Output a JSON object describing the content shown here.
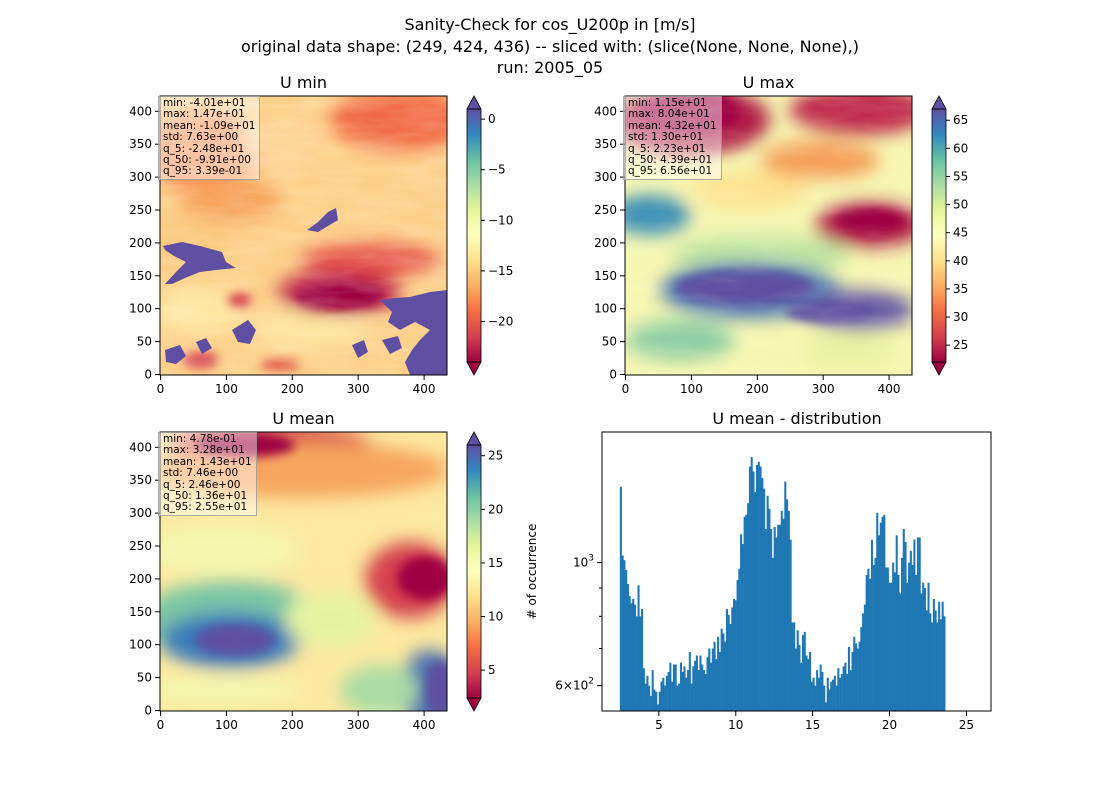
{
  "figure": {
    "title_lines": [
      "Sanity-Check for cos_U200p in [m/s]",
      "original data shape: (249, 424, 436) -- sliced with: (slice(None, None, None),)",
      "run: 2005_05"
    ]
  },
  "chart_data": [
    {
      "type": "heatmap",
      "title": "U min",
      "colormap": "Spectral",
      "x_ticks": [
        "0",
        "100",
        "200",
        "300",
        "400"
      ],
      "y_ticks": [
        "0",
        "50",
        "100",
        "150",
        "200",
        "250",
        "300",
        "350",
        "400"
      ],
      "xlim": [
        0,
        436
      ],
      "ylim": [
        0,
        424
      ],
      "colorbar": {
        "range": [
          -24,
          1
        ],
        "ticks": [
          "0",
          "−5",
          "−10",
          "−15",
          "−20"
        ],
        "tick_values": [
          0,
          -5,
          -10,
          -15,
          -20
        ],
        "extend": "both"
      },
      "stats": [
        "min: -4.01e+01",
        "max: 1.47e+01",
        "mean: -1.09e+01",
        "std: 7.63e+00",
        "q_5: -2.48e+01",
        "q_50: -9.91e+00",
        "q_95: 3.39e-01"
      ]
    },
    {
      "type": "heatmap",
      "title": "U max",
      "colormap": "Spectral",
      "x_ticks": [
        "0",
        "100",
        "200",
        "300",
        "400"
      ],
      "y_ticks": [
        "0",
        "50",
        "100",
        "150",
        "200",
        "250",
        "300",
        "350",
        "400"
      ],
      "xlim": [
        0,
        436
      ],
      "ylim": [
        0,
        424
      ],
      "colorbar": {
        "range": [
          22,
          67
        ],
        "ticks": [
          "25",
          "30",
          "35",
          "40",
          "45",
          "50",
          "55",
          "60",
          "65"
        ],
        "tick_values": [
          25,
          30,
          35,
          40,
          45,
          50,
          55,
          60,
          65
        ],
        "extend": "both"
      },
      "stats": [
        "min: 1.15e+01",
        "max: 8.04e+01",
        "mean: 4.32e+01",
        "std: 1.30e+01",
        "q_5: 2.23e+01",
        "q_50: 4.39e+01",
        "q_95: 6.56e+01"
      ]
    },
    {
      "type": "heatmap",
      "title": "U mean",
      "colormap": "Spectral",
      "x_ticks": [
        "0",
        "100",
        "200",
        "300",
        "400"
      ],
      "y_ticks": [
        "0",
        "50",
        "100",
        "150",
        "200",
        "250",
        "300",
        "350",
        "400"
      ],
      "xlim": [
        0,
        436
      ],
      "ylim": [
        0,
        424
      ],
      "colorbar": {
        "range": [
          2.4,
          26.0
        ],
        "ticks": [
          "5",
          "10",
          "15",
          "20",
          "25"
        ],
        "tick_values": [
          5,
          10,
          15,
          20,
          25
        ],
        "extend": "both"
      },
      "stats": [
        "min: 4.78e-01",
        "max: 3.28e+01",
        "mean: 1.43e+01",
        "std: 7.46e+00",
        "q_5: 2.46e+00",
        "q_50: 1.36e+01",
        "q_95: 2.55e+01"
      ]
    },
    {
      "type": "bar",
      "title": "U mean - distribution",
      "ylabel": "# of occurrence",
      "yscale": "log",
      "xlim": [
        1.3,
        26.6
      ],
      "ylim": [
        540,
        1720
      ],
      "x_ticks": [
        "5",
        "10",
        "15",
        "20",
        "25"
      ],
      "x_tick_values": [
        5,
        10,
        15,
        20,
        25
      ],
      "y_major_ticks": [
        {
          "value": 600,
          "base": "6",
          "exp": "10",
          "power": "2"
        },
        {
          "value": 1000,
          "base": "",
          "exp": "10",
          "power": "3"
        }
      ],
      "y_minor_ticks": [
        700,
        800,
        900
      ],
      "bar_color": "#1f77b4",
      "bin_start": 2.46,
      "bin_width": 0.115,
      "values": [
        1370,
        1030,
        1010,
        970,
        915,
        870,
        845,
        860,
        840,
        800,
        910,
        800,
        825,
        645,
        605,
        625,
        600,
        575,
        640,
        590,
        585,
        555,
        585,
        610,
        620,
        600,
        625,
        635,
        660,
        610,
        655,
        655,
        600,
        605,
        660,
        635,
        650,
        620,
        640,
        690,
        605,
        650,
        665,
        680,
        640,
        680,
        655,
        640,
        630,
        675,
        700,
        660,
        700,
        720,
        670,
        735,
        690,
        760,
        745,
        720,
        825,
        805,
        775,
        830,
        860,
        855,
        930,
        975,
        1125,
        1080,
        1210,
        1220,
        1280,
        1490,
        1550,
        1460,
        1340,
        1500,
        1520,
        1490,
        1420,
        1360,
        1150,
        1320,
        1250,
        1150,
        1020,
        1160,
        1110,
        1170,
        1170,
        1240,
        1200,
        1400,
        1300,
        1240,
        1100,
        780,
        780,
        700,
        755,
        710,
        660,
        740,
        750,
        680,
        670,
        690,
        610,
        620,
        600,
        640,
        620,
        655,
        635,
        600,
        560,
        620,
        590,
        610,
        615,
        625,
        600,
        645,
        620,
        630,
        650,
        660,
        630,
        705,
        640,
        690,
        735,
        715,
        700,
        720,
        765,
        810,
        840,
        950,
        975,
        935,
        1100,
        990,
        1020,
        1230,
        1120,
        1180,
        1210,
        1220,
        980,
        980,
        920,
        920,
        1000,
        960,
        1120,
        950,
        880,
        1020,
        1150,
        1090,
        920,
        1000,
        1050,
        990,
        1100,
        950,
        1110,
        1110,
        880,
        920,
        900,
        820,
        920,
        810,
        780,
        860,
        820,
        780,
        850,
        790,
        850,
        800
      ]
    }
  ]
}
